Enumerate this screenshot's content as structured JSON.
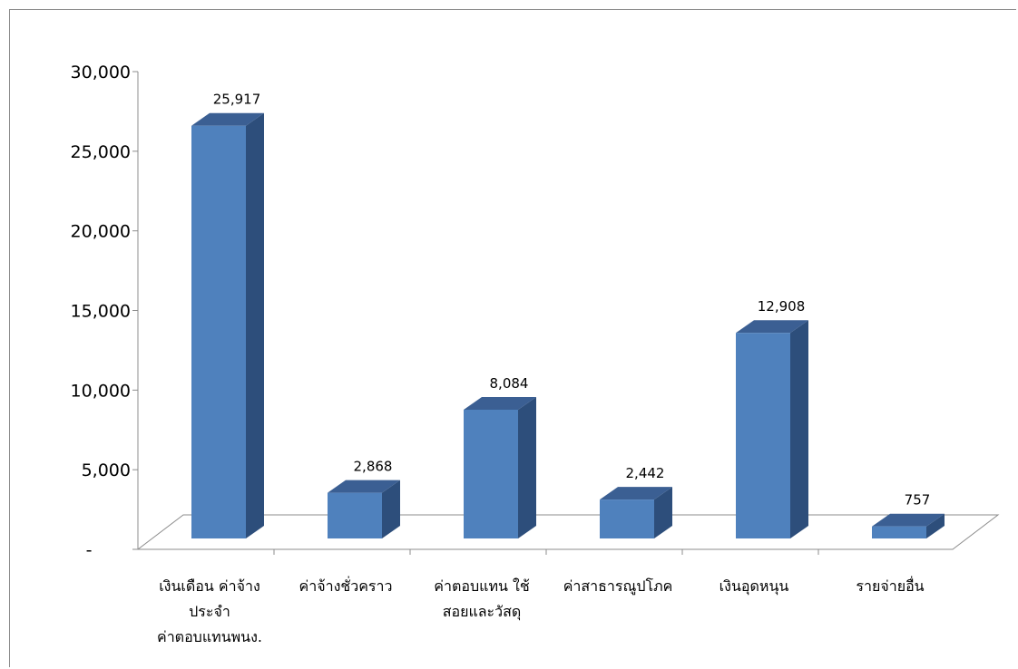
{
  "chart_data": {
    "type": "bar",
    "three_d": true,
    "title": "",
    "xlabel": "",
    "ylabel": "",
    "ylim": [
      0,
      30000
    ],
    "y_ticks": [
      {
        "value": 0,
        "label": "-"
      },
      {
        "value": 5000,
        "label": "5,000"
      },
      {
        "value": 10000,
        "label": "10,000"
      },
      {
        "value": 15000,
        "label": "15,000"
      },
      {
        "value": 20000,
        "label": "20,000"
      },
      {
        "value": 25000,
        "label": "25,000"
      },
      {
        "value": 30000,
        "label": "30,000"
      }
    ],
    "grid": false,
    "legend": "none",
    "categories": [
      {
        "lines": [
          "เงินเดือน ค่าจ้าง",
          "ประจำ",
          "ค่าตอบแทนพนง."
        ]
      },
      {
        "lines": [
          "ค่าจ้างชั่วคราว"
        ]
      },
      {
        "lines": [
          "ค่าตอบแทน ใช้",
          "สอยและวัสดุ"
        ]
      },
      {
        "lines": [
          "ค่าสาธารณูปโภค"
        ]
      },
      {
        "lines": [
          "เงินอุดหนุน"
        ]
      },
      {
        "lines": [
          "รายจ่ายอื่น"
        ]
      }
    ],
    "values": [
      25917,
      2868,
      8084,
      2442,
      12908,
      757
    ],
    "data_labels": [
      "25,917",
      "2,868",
      "8,084",
      "2,442",
      "12,908",
      "757"
    ],
    "colors": {
      "bar_front": "#4f81bd",
      "bar_side": "#2d4e7b",
      "bar_top": "#3b5f93",
      "axis": "#8c8c8c"
    }
  }
}
